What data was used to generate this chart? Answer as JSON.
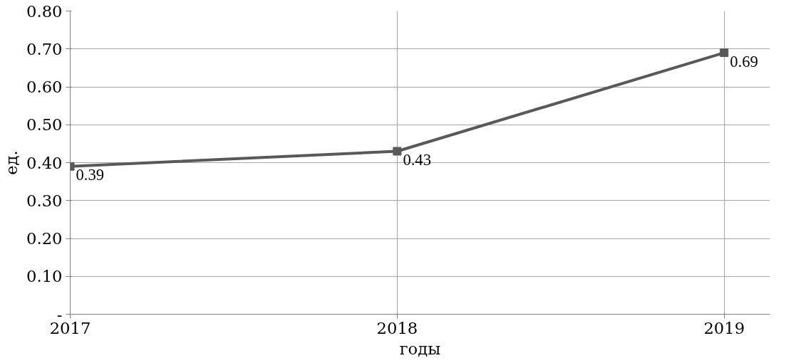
{
  "chart_data": {
    "type": "line",
    "xlabel": "годы",
    "ylabel": "ед.",
    "categories": [
      "2017",
      "2018",
      "2019"
    ],
    "series": [
      {
        "color": "#595959",
        "values": [
          0.39,
          0.43,
          0.69
        ]
      }
    ],
    "ylim": [
      0,
      0.8
    ],
    "yticks": [
      {
        "value": 0,
        "label": "-"
      },
      {
        "value": 0.1,
        "label": "0.10"
      },
      {
        "value": 0.2,
        "label": "0.20"
      },
      {
        "value": 0.3,
        "label": "0.30"
      },
      {
        "value": 0.4,
        "label": "0.40"
      },
      {
        "value": 0.5,
        "label": "0.50"
      },
      {
        "value": 0.6,
        "label": "0.60"
      },
      {
        "value": 0.7,
        "label": "0.70"
      },
      {
        "value": 0.8,
        "label": "0.80"
      }
    ],
    "grid": true,
    "marker": "square",
    "line_style": "solid",
    "data_labels": true
  }
}
